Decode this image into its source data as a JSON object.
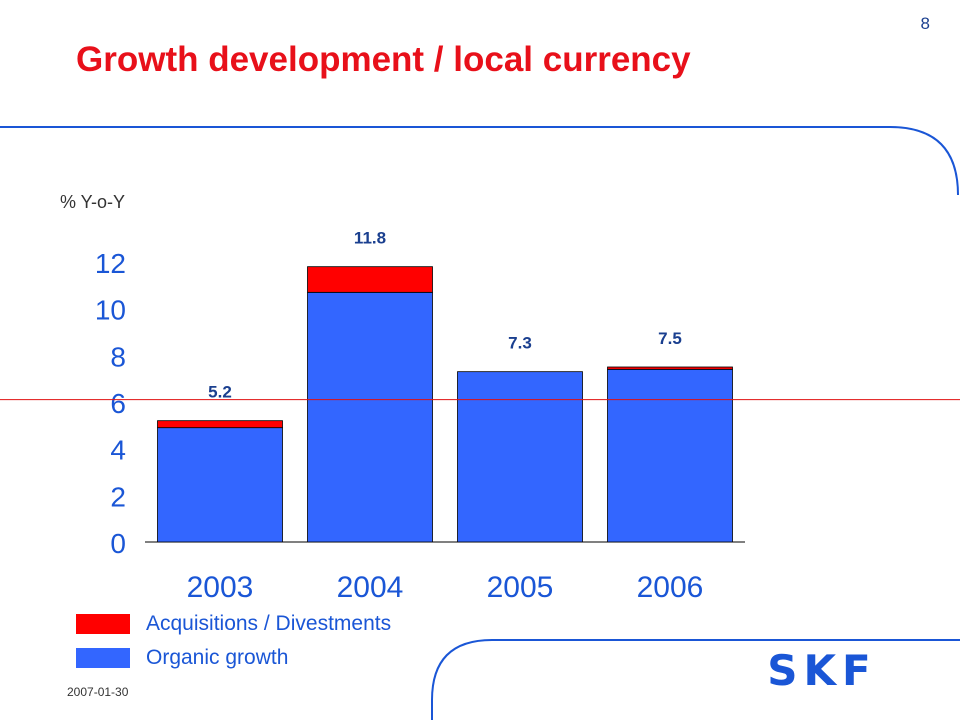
{
  "slide": {
    "page_number": "8",
    "title": "Growth development / local currency",
    "date": "2007-01-30"
  },
  "logo": {
    "text": "SKF",
    "color": "#1a56d6"
  },
  "colors": {
    "title": "#e8101a",
    "organic": "#3366ff",
    "acquisitions": "#ff0000",
    "data_label": "#1a3f8f",
    "axis_text": "#1a56d6",
    "reference_line": "#e01010"
  },
  "chart_data": {
    "type": "bar",
    "stacked": true,
    "unit_label": "% Y-o-Y",
    "categories": [
      "2003",
      "2004",
      "2005",
      "2006"
    ],
    "series": [
      {
        "name": "Organic growth",
        "values": [
          4.9,
          10.7,
          7.3,
          7.4
        ]
      },
      {
        "name": "Acquisitions / Divestments",
        "values": [
          0.3,
          1.1,
          0.0,
          0.1
        ]
      }
    ],
    "totals": [
      "5.2",
      "11.8",
      "7.3",
      "7.5"
    ],
    "y_ticks": [
      "0",
      "2",
      "4",
      "6",
      "8",
      "10",
      "12"
    ],
    "ylim": [
      0,
      12
    ],
    "reference_line_y": 6.1,
    "grid": false,
    "legend_position": "bottom-left"
  }
}
